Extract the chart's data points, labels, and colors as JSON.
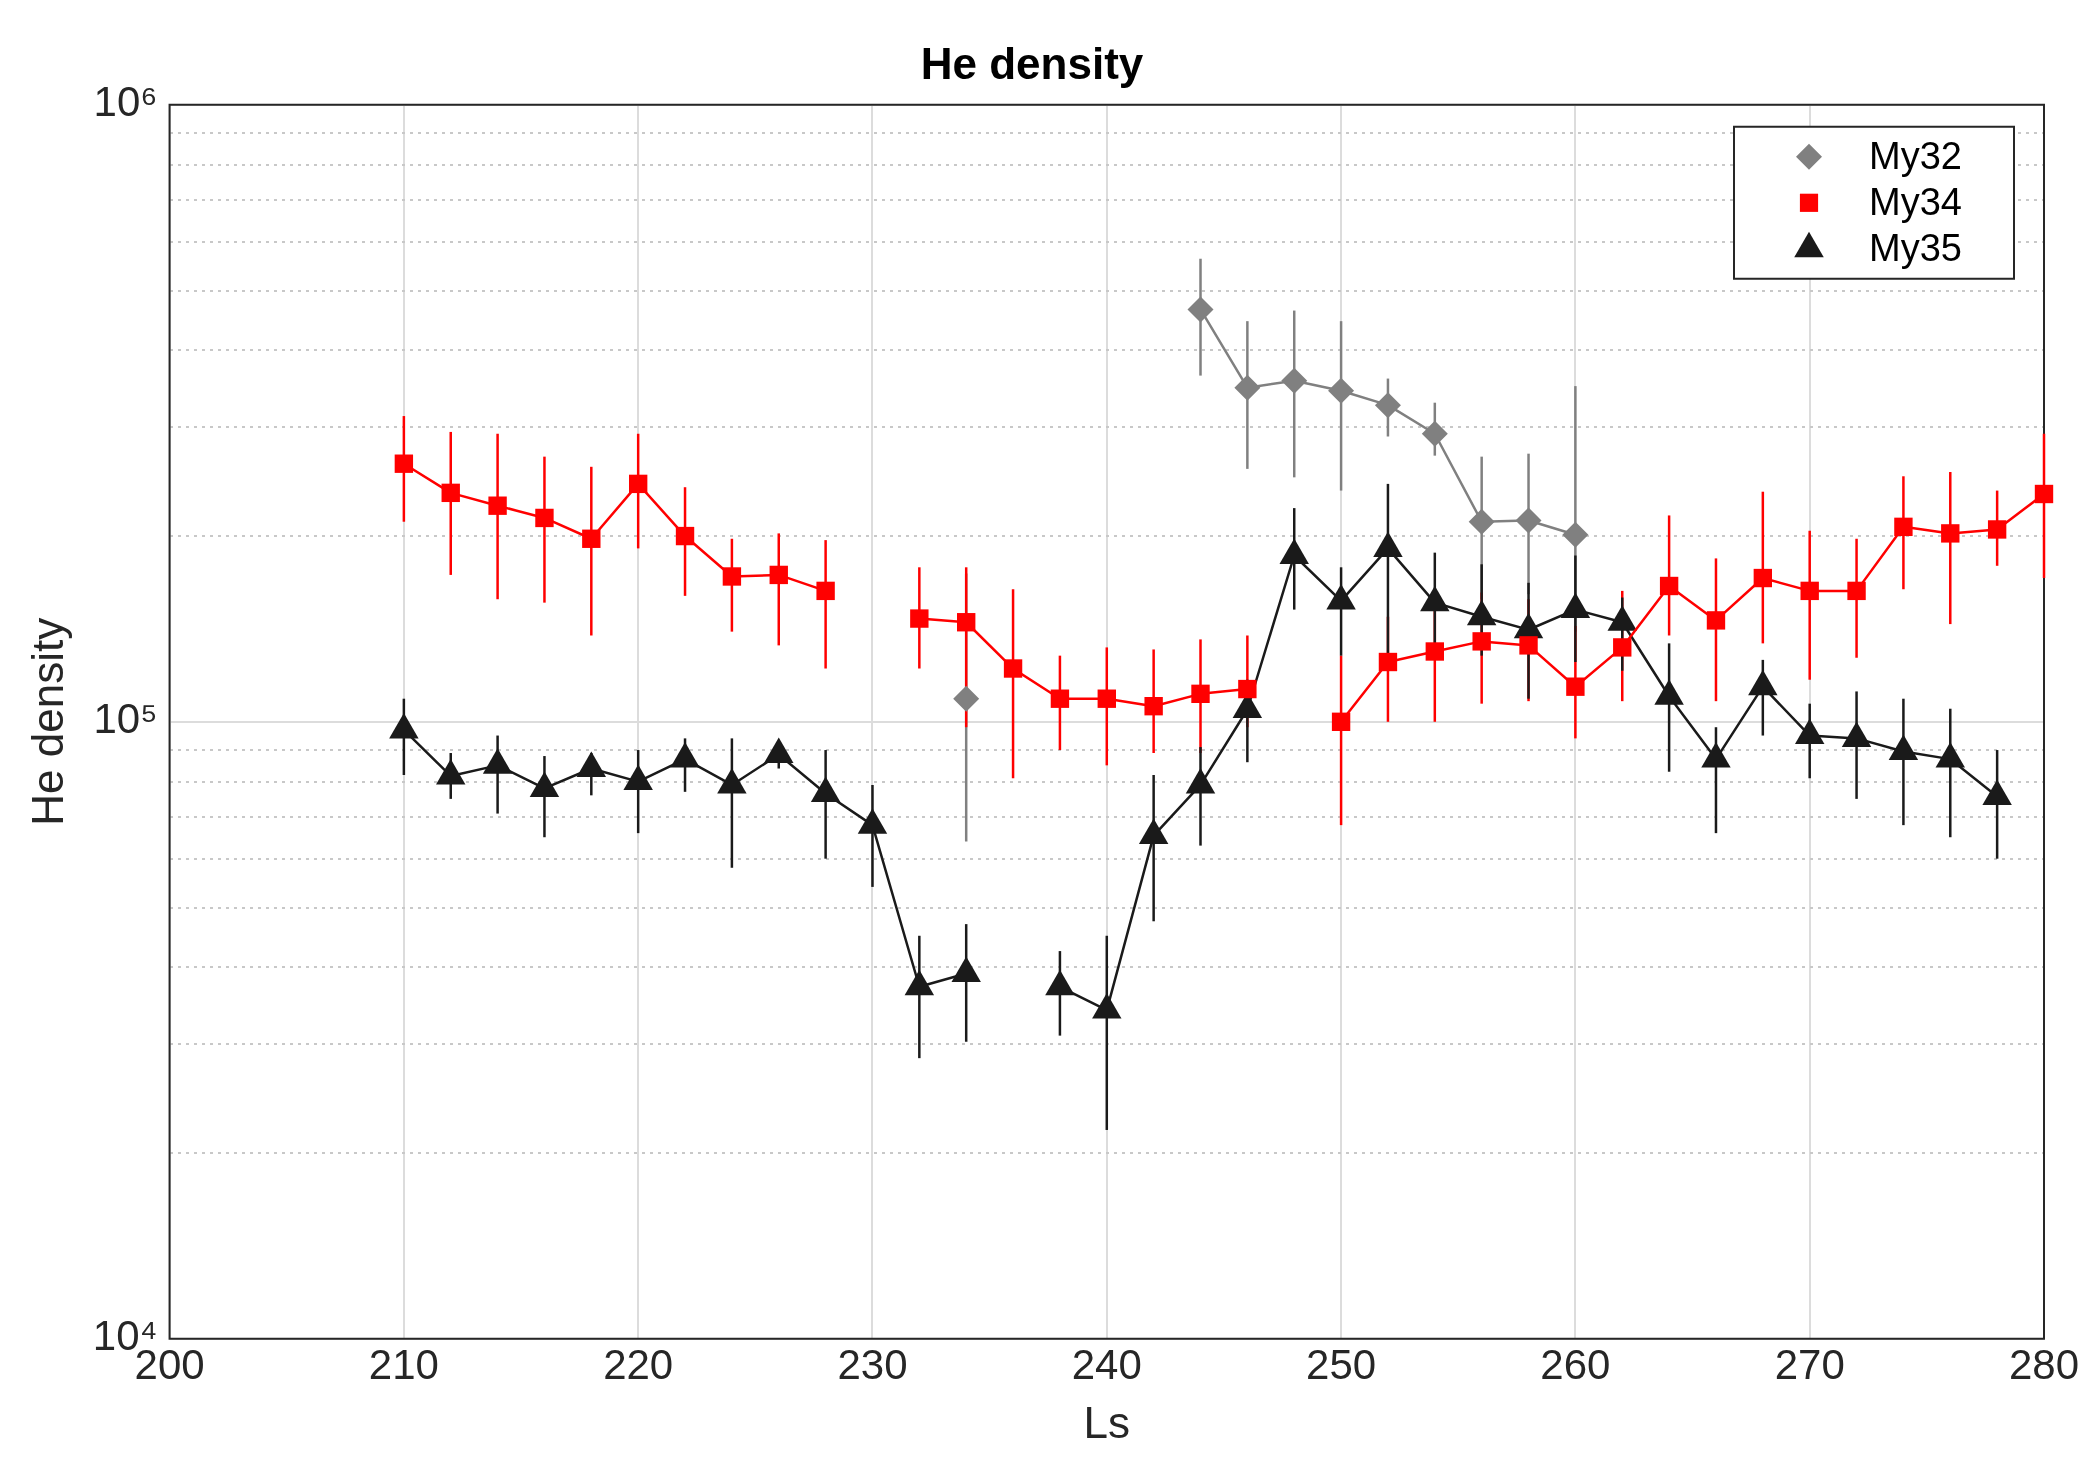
{
  "chart_data": {
    "type": "line",
    "title": "He density",
    "xlabel": "Ls",
    "ylabel": "He density",
    "log": "y",
    "grid": true,
    "legend": "top right",
    "x": [
      210,
      212,
      214,
      216,
      218,
      220,
      222,
      224,
      226,
      228,
      230,
      232,
      234,
      236,
      238,
      240,
      242,
      244,
      246,
      248,
      250,
      252,
      254,
      256,
      258,
      260,
      262,
      264,
      266,
      268,
      270,
      272,
      274,
      276,
      278,
      280
    ],
    "xlim": [
      200,
      280
    ],
    "xticks": [
      200,
      210,
      220,
      230,
      240,
      250,
      260,
      270,
      280
    ],
    "ylim": [
      10000,
      1000000
    ],
    "yticks": [
      {
        "value": 10000,
        "label": "10⁴"
      },
      {
        "value": 20000,
        "label": null
      },
      {
        "value": 30000,
        "label": null
      },
      {
        "value": 40000,
        "label": null
      },
      {
        "value": 50000,
        "label": null
      },
      {
        "value": 60000,
        "label": null
      },
      {
        "value": 70000,
        "label": null
      },
      {
        "value": 80000,
        "label": null
      },
      {
        "value": 90000,
        "label": null
      },
      {
        "value": 100000,
        "label": "10⁵"
      },
      {
        "value": 200000,
        "label": null
      },
      {
        "value": 300000,
        "label": null
      },
      {
        "value": 400000,
        "label": null
      },
      {
        "value": 500000,
        "label": null
      },
      {
        "value": 600000,
        "label": null
      },
      {
        "value": 700000,
        "label": null
      },
      {
        "value": 800000,
        "label": null
      },
      {
        "value": 900000,
        "label": null
      },
      {
        "value": 1000000,
        "label": "10⁶"
      }
    ],
    "series": [
      {
        "name": "My32",
        "color": "#808080",
        "marker": "diamond",
        "values": [
          null,
          null,
          null,
          null,
          null,
          null,
          null,
          null,
          null,
          null,
          null,
          null,
          109000,
          null,
          null,
          null,
          null,
          466000,
          348000,
          357000,
          344000,
          326000,
          293000,
          211000,
          212000,
          201000,
          null,
          null,
          null,
          null,
          null,
          null,
          null,
          null,
          null,
          null
        ],
        "errors": [
          null,
          null,
          null,
          null,
          null,
          null,
          null,
          null,
          null,
          null,
          null,
          null,
          [
            64000,
            174000
          ],
          null,
          null,
          null,
          null,
          [
            364000,
            563000
          ],
          [
            257000,
            446000
          ],
          [
            249000,
            464000
          ],
          [
            237000,
            446000
          ],
          [
            290000,
            360000
          ],
          [
            270000,
            329000
          ],
          [
            158000,
            269000
          ],
          [
            161000,
            272000
          ],
          [
            140000,
            350000
          ],
          null,
          null,
          null,
          null,
          null,
          null,
          null,
          null,
          null,
          null
        ]
      },
      {
        "name": "My34",
        "color": "#ff0000",
        "marker": "square",
        "values": [
          262000,
          235000,
          224000,
          214000,
          198000,
          243000,
          200000,
          172000,
          173000,
          163000,
          null,
          147000,
          145000,
          122000,
          109000,
          109000,
          106000,
          111000,
          113000,
          null,
          100000,
          125000,
          130000,
          135000,
          133000,
          114000,
          132000,
          166000,
          146000,
          171000,
          163000,
          163000,
          207000,
          202000,
          205000,
          234000
        ],
        "errors": [
          [
            211000,
            313000
          ],
          [
            173000,
            295000
          ],
          [
            158000,
            293000
          ],
          [
            156000,
            269000
          ],
          [
            138000,
            259000
          ],
          [
            191000,
            293000
          ],
          [
            160000,
            240000
          ],
          [
            140000,
            198000
          ],
          [
            133000,
            202000
          ],
          [
            122000,
            197000
          ],
          null,
          [
            122000,
            178000
          ],
          [
            98000,
            178000
          ],
          [
            81000,
            164000
          ],
          [
            90000,
            128000
          ],
          [
            85000,
            132000
          ],
          [
            89000,
            131000
          ],
          [
            89000,
            136000
          ],
          [
            98000,
            138000
          ],
          null,
          [
            68000,
            128000
          ],
          [
            100000,
            148000
          ],
          [
            100000,
            162000
          ],
          [
            107000,
            162000
          ],
          [
            108000,
            158000
          ],
          [
            94000,
            143000
          ],
          [
            108000,
            163000
          ],
          [
            138000,
            216000
          ],
          [
            108000,
            184000
          ],
          [
            134000,
            236000
          ],
          [
            117000,
            204000
          ],
          [
            127000,
            198000
          ],
          [
            164000,
            250000
          ],
          [
            144000,
            254000
          ],
          [
            179000,
            237000
          ],
          [
            171000,
            293000
          ]
        ]
      },
      {
        "name": "My35",
        "color": "#1a1a1a",
        "marker": "triangle",
        "values": [
          97000,
          81700,
          85000,
          78000,
          84000,
          80000,
          87000,
          79000,
          88500,
          76500,
          68000,
          37200,
          39100,
          null,
          37200,
          34100,
          65400,
          79000,
          104700,
          186000,
          157000,
          191000,
          156000,
          148000,
          141000,
          152000,
          145000,
          110000,
          87000,
          114000,
          95000,
          94000,
          89500,
          87000,
          75700,
          null
        ],
        "errors": [
          [
            82000,
            109000
          ],
          [
            75000,
            89000
          ],
          [
            71000,
            95000
          ],
          [
            65000,
            88000
          ],
          [
            76000,
            89000
          ],
          [
            66000,
            90000
          ],
          [
            77000,
            94000
          ],
          [
            58000,
            94000
          ],
          [
            84000,
            92000
          ],
          [
            60000,
            90000
          ],
          [
            54000,
            79000
          ],
          [
            28500,
            45000
          ],
          [
            30300,
            47000
          ],
          null,
          [
            31000,
            42500
          ],
          [
            21800,
            45000
          ],
          [
            47500,
            82000
          ],
          [
            63000,
            91000
          ],
          [
            86000,
            117000
          ],
          [
            152000,
            222000
          ],
          [
            128000,
            178000
          ],
          [
            128000,
            243000
          ],
          [
            134000,
            188000
          ],
          [
            128000,
            180000
          ],
          [
            109000,
            168000
          ],
          [
            125000,
            186000
          ],
          [
            121000,
            159000
          ],
          [
            83000,
            134000
          ],
          [
            66000,
            98000
          ],
          [
            95000,
            126000
          ],
          [
            81000,
            107000
          ],
          [
            75000,
            112000
          ],
          [
            68000,
            109000
          ],
          [
            65000,
            105000
          ],
          [
            60000,
            90000
          ],
          null
        ]
      }
    ]
  }
}
